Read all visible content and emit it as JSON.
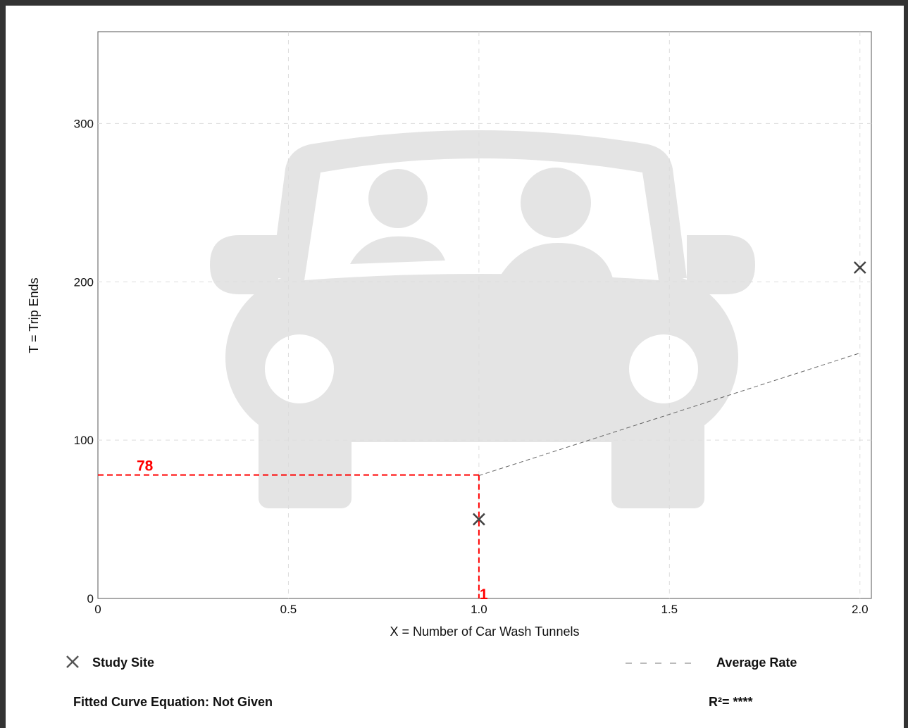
{
  "chart_data": {
    "type": "scatter",
    "xlabel": "X = Number of Car Wash Tunnels",
    "ylabel": "T = Trip Ends",
    "xlim": [
      0,
      2.03
    ],
    "ylim": [
      0,
      358
    ],
    "x_ticks": [
      "0",
      "0.5",
      "1.0",
      "1.5",
      "2.0"
    ],
    "x_tick_values": [
      0,
      0.5,
      1.0,
      1.5,
      2.0
    ],
    "y_ticks": [
      "0",
      "100",
      "200",
      "300"
    ],
    "y_tick_values": [
      0,
      100,
      200,
      300
    ],
    "grid": true,
    "series": [
      {
        "name": "Study Site",
        "marker": "x",
        "color": "#444444",
        "points": [
          {
            "x": 1.0,
            "y": 50
          },
          {
            "x": 2.0,
            "y": 209
          }
        ]
      },
      {
        "name": "Average Rate",
        "style": "dashed",
        "color": "#666666",
        "points": [
          {
            "x": 1.0,
            "y": 77.6
          },
          {
            "x": 2.0,
            "y": 155
          }
        ]
      }
    ],
    "annotation": {
      "color": "#ff0000",
      "x_value": 1,
      "y_value": 78,
      "x_label": "1",
      "y_label": "78"
    },
    "background_icon": "car-icon"
  },
  "legend": {
    "study_site_label": "Study Site",
    "average_rate_label": "Average Rate",
    "fitted_curve_label": "Fitted Curve Equation: Not Given",
    "r_squared_label": "R²= ****"
  }
}
